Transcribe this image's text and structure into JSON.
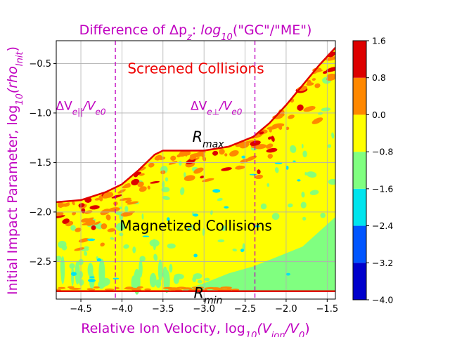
{
  "chart_data": {
    "type": "heatmap",
    "title_prefix": "Difference of Δp",
    "title_sub": "z",
    "title_mid": ": ",
    "title_log": "log",
    "title_log_sub": "10",
    "title_suffix": "(\"GC\"/\"ME\")",
    "xlabel_prefix": "Relative Ion Velocity,  log",
    "xlabel_sub1": "10",
    "xlabel_mid": "(V",
    "xlabel_sub2": "ion",
    "xlabel_mid2": "/V",
    "xlabel_sub3": "0",
    "xlabel_suffix": ")",
    "ylabel_prefix": "Initial Impact Parameter, log",
    "ylabel_sub1": "10",
    "ylabel_mid": "(rho",
    "ylabel_sub2": "Init",
    "ylabel_suffix": ")",
    "xlim": [
      -4.8,
      -1.4
    ],
    "ylim": [
      -2.88,
      -0.27
    ],
    "x_ticks": [
      -4.5,
      -4.0,
      -3.5,
      -3.0,
      -2.5,
      -2.0,
      -1.5
    ],
    "x_tick_labels": [
      "−4.5",
      "−4.0",
      "−3.5",
      "−3.0",
      "−2.5",
      "−2.0",
      "−1.5"
    ],
    "y_ticks": [
      -0.5,
      -1.0,
      -1.5,
      -2.0,
      -2.5
    ],
    "y_tick_labels": [
      "−0.5",
      "−1.0",
      "−1.5",
      "−2.0",
      "−2.5"
    ],
    "grid": true,
    "colorbar": {
      "levels": [
        -4.0,
        -3.2,
        -2.4,
        -1.6,
        -0.8,
        0.0,
        0.8,
        1.6
      ],
      "labels": [
        "−4.0",
        "−3.2",
        "−2.4",
        "−1.6",
        "−0.8",
        "0.0",
        "0.8",
        "1.6"
      ],
      "colors": [
        "#0000cc",
        "#0055ff",
        "#00e5ee",
        "#80ff80",
        "#ffff00",
        "#ff8800",
        "#dd0000"
      ]
    },
    "boundary_rmax": [
      [
        -4.8,
        -1.9
      ],
      [
        -4.5,
        -1.88
      ],
      [
        -4.2,
        -1.8
      ],
      [
        -4.0,
        -1.72
      ],
      [
        -3.8,
        -1.58
      ],
      [
        -3.6,
        -1.42
      ],
      [
        -3.5,
        -1.38
      ],
      [
        -3.0,
        -1.38
      ],
      [
        -2.7,
        -1.34
      ],
      [
        -2.4,
        -1.24
      ],
      [
        -2.2,
        -1.1
      ],
      [
        -2.0,
        -0.92
      ],
      [
        -1.8,
        -0.72
      ],
      [
        -1.6,
        -0.52
      ],
      [
        -1.4,
        -0.34
      ]
    ],
    "boundary_rmin_y": -2.8,
    "vlines": [
      {
        "x": -4.08,
        "label_main": "ΔV",
        "label_sub": "e||",
        "label_rest": "/V",
        "label_sub2": "e0",
        "label_x": -4.5,
        "label_y": -0.97
      },
      {
        "x": -2.38,
        "label_main": "ΔV",
        "label_sub": "e⊥",
        "label_rest": "/V",
        "label_sub2": "e0",
        "label_x": -2.85,
        "label_y": -0.97
      }
    ],
    "annotations": {
      "screened": {
        "text": "Screened Collisions",
        "x": -3.1,
        "y": -0.6,
        "color": "#ee0000"
      },
      "magnetized": {
        "text": "Magnetized Collisions",
        "x": -3.1,
        "y": -2.19,
        "color": "#000000"
      },
      "rmax": {
        "text": "R",
        "sub": "max",
        "x": -2.95,
        "y": -1.29
      },
      "rmin": {
        "text": "R",
        "sub": "min",
        "x": -2.95,
        "y": -2.87
      }
    },
    "regions": [
      {
        "level": "yellow",
        "note": "bulk region between R_min and R_max, value band -0.8 to 0.0"
      },
      {
        "level": "green",
        "note": "lower-right region, value band -1.6 to -0.8"
      },
      {
        "level": "orange",
        "note": "scattered patches near R_max, value band 0.0 to 0.8"
      },
      {
        "level": "red",
        "note": "sparse patches near R_max, value band 0.8 to 1.6"
      },
      {
        "level": "cyan",
        "note": "small spots, value band -2.4 to -1.6"
      }
    ]
  }
}
